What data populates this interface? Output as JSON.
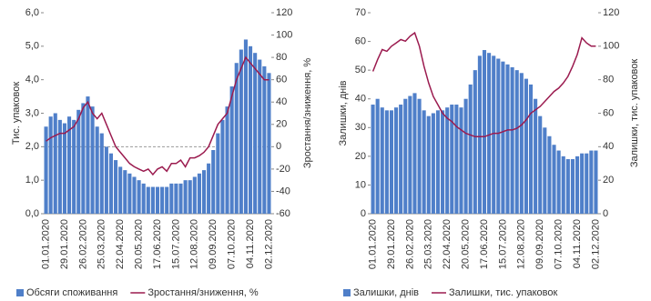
{
  "chart_data": [
    {
      "type": "combo",
      "y_label": "Тис. упаковок",
      "y2_label": "Зростання/зниження, %",
      "categories": [
        "01.01.2020",
        null,
        null,
        null,
        "29.01.2020",
        null,
        null,
        null,
        "26.02.2020",
        null,
        null,
        null,
        "25.03.2020",
        null,
        null,
        null,
        "22.04.2020",
        null,
        null,
        null,
        "20.05.2020",
        null,
        null,
        null,
        "17.06.2020",
        null,
        null,
        null,
        "15.07.2020",
        null,
        null,
        null,
        "12.08.2020",
        null,
        null,
        null,
        "09.09.2020",
        null,
        null,
        null,
        "07.10.2020",
        null,
        null,
        null,
        "04.11.2020",
        null,
        null,
        null,
        "02.12.2020"
      ],
      "ylim": [
        0,
        6
      ],
      "yticks": [
        {
          "value": 0,
          "label": "0,0"
        },
        {
          "value": 1,
          "label": "1,0"
        },
        {
          "value": 2,
          "label": "2,0"
        },
        {
          "value": 3,
          "label": "3,0"
        },
        {
          "value": 4,
          "label": "4,0"
        },
        {
          "value": 5,
          "label": "5,0"
        },
        {
          "value": 6,
          "label": "6,0"
        }
      ],
      "y2lim": [
        -60,
        120
      ],
      "y2ticks": [
        -60,
        -40,
        -20,
        0,
        20,
        40,
        60,
        80,
        100,
        120
      ],
      "series": [
        {
          "name": "Обсяги споживання",
          "kind": "bar",
          "color": "#4f7fc9",
          "values": [
            2.6,
            2.9,
            3.0,
            2.8,
            2.7,
            2.9,
            2.8,
            3.1,
            3.3,
            3.5,
            3.2,
            2.6,
            2.4,
            2.0,
            1.8,
            1.6,
            1.4,
            1.3,
            1.2,
            1.1,
            1.0,
            0.9,
            0.8,
            0.8,
            0.8,
            0.8,
            0.8,
            0.9,
            0.9,
            0.9,
            1.0,
            1.0,
            1.1,
            1.2,
            1.3,
            1.5,
            1.9,
            2.4,
            2.8,
            3.2,
            3.8,
            4.5,
            4.9,
            5.2,
            5.0,
            4.8,
            4.6,
            4.4,
            4.2
          ]
        },
        {
          "name": "Зростання/зниження, %",
          "kind": "line",
          "axis": "y2",
          "color": "#9b1b4f",
          "values": [
            5,
            8,
            10,
            12,
            12,
            15,
            18,
            25,
            35,
            40,
            30,
            25,
            30,
            20,
            10,
            0,
            -5,
            -10,
            -15,
            -18,
            -20,
            -22,
            -20,
            -25,
            -20,
            -18,
            -22,
            -15,
            -15,
            -12,
            -18,
            -10,
            -10,
            -8,
            -5,
            0,
            10,
            20,
            25,
            30,
            45,
            60,
            70,
            80,
            75,
            70,
            65,
            60,
            60
          ]
        }
      ]
    },
    {
      "type": "combo",
      "y_label": "Залишки, днів",
      "y2_label": "Залишки, тис. упаковок",
      "categories": [
        "01.01.2020",
        null,
        null,
        null,
        "29.01.2020",
        null,
        null,
        null,
        "26.02.2020",
        null,
        null,
        null,
        "25.03.2020",
        null,
        null,
        null,
        "22.04.2020",
        null,
        null,
        null,
        "20.05.2020",
        null,
        null,
        null,
        "17.06.2020",
        null,
        null,
        null,
        "15.07.2020",
        null,
        null,
        null,
        "12.08.2020",
        null,
        null,
        null,
        "09.09.2020",
        null,
        null,
        null,
        "07.10.2020",
        null,
        null,
        null,
        "04.11.2020",
        null,
        null,
        null,
        "02.12.2020"
      ],
      "ylim": [
        0,
        70
      ],
      "yticks": [
        0,
        10,
        20,
        30,
        40,
        50,
        60,
        70
      ],
      "y2lim": [
        0,
        120
      ],
      "y2ticks": [
        0,
        20,
        40,
        60,
        80,
        100,
        120
      ],
      "series": [
        {
          "name": "Залишки, днів",
          "kind": "bar",
          "color": "#4f7fc9",
          "values": [
            38,
            40,
            37,
            36,
            36,
            37,
            38,
            40,
            41,
            42,
            40,
            36,
            34,
            35,
            36,
            36,
            37,
            38,
            38,
            37,
            40,
            45,
            50,
            55,
            57,
            56,
            55,
            54,
            53,
            52,
            51,
            50,
            49,
            47,
            45,
            40,
            34,
            30,
            27,
            24,
            22,
            20,
            19,
            19,
            20,
            21,
            21,
            22,
            22
          ]
        },
        {
          "name": "Залишки, тис. упаковок",
          "kind": "line",
          "axis": "y2",
          "color": "#9b1b4f",
          "values": [
            85,
            92,
            98,
            97,
            100,
            102,
            104,
            103,
            106,
            108,
            100,
            88,
            78,
            70,
            65,
            60,
            57,
            55,
            52,
            50,
            48,
            47,
            46,
            46,
            46,
            47,
            48,
            48,
            49,
            50,
            50,
            51,
            53,
            56,
            60,
            62,
            64,
            67,
            70,
            73,
            75,
            78,
            82,
            88,
            95,
            105,
            102,
            100,
            100
          ]
        }
      ]
    }
  ]
}
